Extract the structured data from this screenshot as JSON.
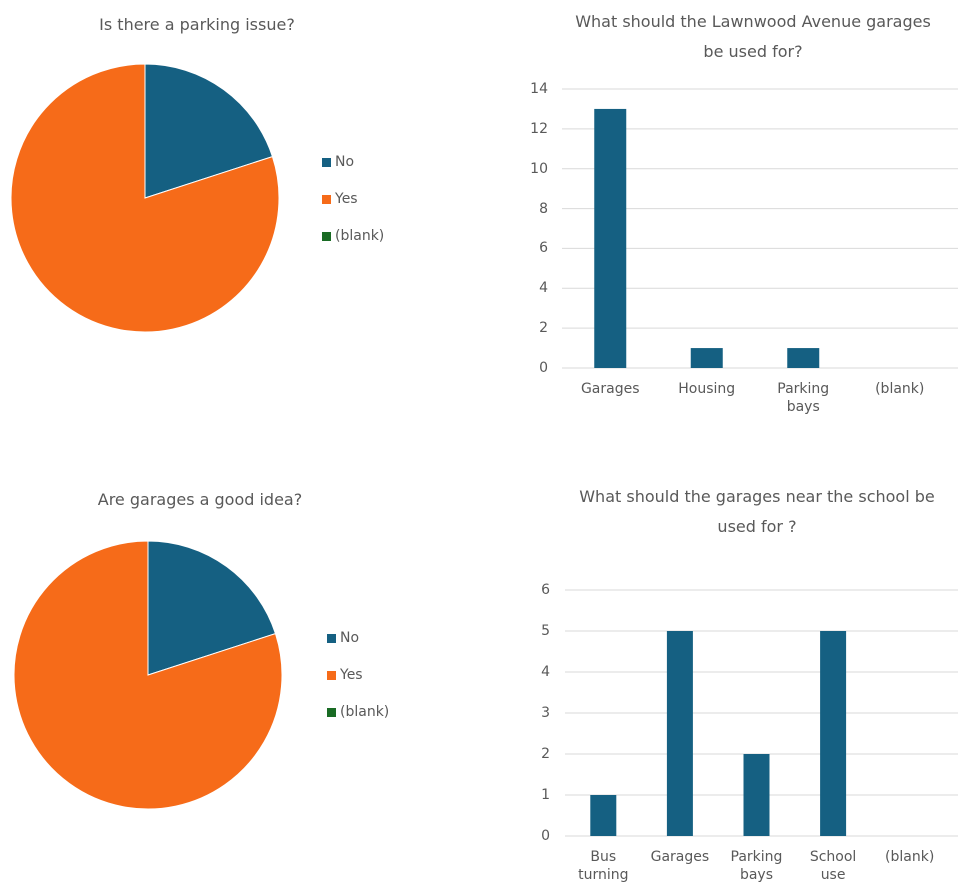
{
  "chart_data": [
    {
      "type": "pie",
      "title": "Is there a parking issue?",
      "categories": [
        "No",
        "Yes",
        "(blank)"
      ],
      "values": [
        3,
        12,
        0
      ],
      "colors": [
        "#156082",
        "#f66b19",
        "#196b24"
      ],
      "legend": "right"
    },
    {
      "type": "bar",
      "title": "What should the Lawnwood Avenue garages be used for?",
      "categories": [
        "Garages",
        "Housing",
        "Parking bays",
        "(blank)"
      ],
      "values": [
        13,
        1,
        1,
        0
      ],
      "color": "#156082",
      "ylim": [
        0,
        14
      ],
      "yticks": [
        0,
        2,
        4,
        6,
        8,
        10,
        12,
        14
      ],
      "grid": true
    },
    {
      "type": "pie",
      "title": "Are garages a good idea?",
      "categories": [
        "No",
        "Yes",
        "(blank)"
      ],
      "values": [
        3,
        12,
        0
      ],
      "colors": [
        "#156082",
        "#f66b19",
        "#196b24"
      ],
      "legend": "right"
    },
    {
      "type": "bar",
      "title": "What should the garages near the school be used for ?",
      "categories": [
        "Bus turning",
        "Garages",
        "Parking bays",
        "School use",
        "(blank)"
      ],
      "values": [
        1,
        5,
        2,
        5,
        0
      ],
      "color": "#156082",
      "ylim": [
        0,
        6
      ],
      "yticks": [
        0,
        1,
        2,
        3,
        4,
        5,
        6
      ],
      "grid": true
    }
  ]
}
